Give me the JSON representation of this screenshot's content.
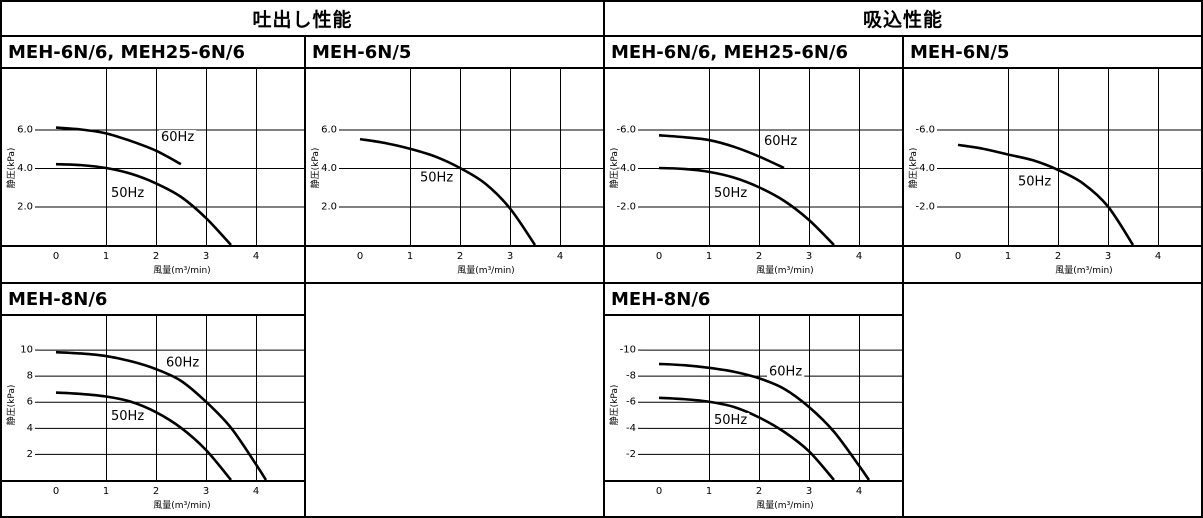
{
  "header": {
    "discharge_label": "吐出し性能",
    "suction_label": "吸込性能"
  },
  "chart_data": [
    {
      "id": "d1",
      "type": "line",
      "title": "MEH-6N/6, MEH25-6N/6",
      "xlabel": "風量(m³/min)",
      "ylabel": "静圧(kPa)",
      "xlim": [
        0,
        5
      ],
      "ylim": [
        0,
        8
      ],
      "xticks": [
        {
          "v": 0,
          "t": "0"
        },
        {
          "v": 1,
          "t": "1"
        },
        {
          "v": 2,
          "t": "2"
        },
        {
          "v": 3,
          "t": "3"
        },
        {
          "v": 4,
          "t": "4"
        }
      ],
      "yticks": [
        {
          "v": 2,
          "t": "2.0"
        },
        {
          "v": 4,
          "t": "4.0"
        },
        {
          "v": 6,
          "t": "6.0"
        }
      ],
      "grid": true,
      "series": [
        {
          "name": "60Hz",
          "x": [
            0,
            0.5,
            1.0,
            1.5,
            2.0,
            2.5
          ],
          "y": [
            6.1,
            6.0,
            5.8,
            5.4,
            4.9,
            4.2
          ],
          "label_at": [
            2.1,
            5.4
          ]
        },
        {
          "name": "50Hz",
          "x": [
            0,
            0.5,
            1.0,
            1.5,
            2.0,
            2.5,
            3.0,
            3.5
          ],
          "y": [
            4.2,
            4.15,
            4.0,
            3.7,
            3.2,
            2.5,
            1.4,
            0
          ],
          "label_at": [
            1.1,
            2.5
          ]
        }
      ]
    },
    {
      "id": "d2",
      "type": "line",
      "title": "MEH-6N/5",
      "xlabel": "風量(m³/min)",
      "ylabel": "静圧(kPa)",
      "xlim": [
        0,
        5
      ],
      "ylim": [
        0,
        8
      ],
      "xticks": [
        {
          "v": 0,
          "t": "0"
        },
        {
          "v": 1,
          "t": "1"
        },
        {
          "v": 2,
          "t": "2"
        },
        {
          "v": 3,
          "t": "3"
        },
        {
          "v": 4,
          "t": "4"
        }
      ],
      "yticks": [
        {
          "v": 2,
          "t": "2.0"
        },
        {
          "v": 4,
          "t": "4.0"
        },
        {
          "v": 6,
          "t": "6.0"
        }
      ],
      "grid": true,
      "series": [
        {
          "name": "50Hz",
          "x": [
            0,
            0.5,
            1.0,
            1.5,
            2.0,
            2.5,
            3.0,
            3.5
          ],
          "y": [
            5.5,
            5.3,
            5.0,
            4.6,
            4.0,
            3.2,
            1.9,
            0
          ],
          "label_at": [
            1.2,
            3.3
          ]
        }
      ]
    },
    {
      "id": "s1",
      "type": "line",
      "title": "MEH-6N/6, MEH25-6N/6",
      "xlabel": "風量(m³/min)",
      "ylabel": "静圧(kPa)",
      "xlim": [
        0,
        5
      ],
      "ylim": [
        0,
        -8
      ],
      "xticks": [
        {
          "v": 0,
          "t": "0"
        },
        {
          "v": 1,
          "t": "1"
        },
        {
          "v": 2,
          "t": "2"
        },
        {
          "v": 3,
          "t": "3"
        },
        {
          "v": 4,
          "t": "4"
        }
      ],
      "yticks": [
        {
          "v": -2,
          "t": "-2.0"
        },
        {
          "v": -4,
          "t": "-4.0"
        },
        {
          "v": -6,
          "t": "-6.0"
        }
      ],
      "grid": true,
      "series": [
        {
          "name": "60Hz",
          "x": [
            0,
            0.5,
            1.0,
            1.5,
            2.0,
            2.5
          ],
          "y": [
            -5.7,
            -5.6,
            -5.45,
            -5.1,
            -4.6,
            -4.0
          ],
          "label_at": [
            2.1,
            -5.2
          ]
        },
        {
          "name": "50Hz",
          "x": [
            0,
            0.5,
            1.0,
            1.5,
            2.0,
            2.5,
            3.0,
            3.5
          ],
          "y": [
            -4.0,
            -3.95,
            -3.8,
            -3.5,
            -3.0,
            -2.3,
            -1.3,
            0
          ],
          "label_at": [
            1.1,
            -2.5
          ]
        }
      ]
    },
    {
      "id": "s2",
      "type": "line",
      "title": "MEH-6N/5",
      "xlabel": "風量(m³/min)",
      "ylabel": "静圧(kPa)",
      "xlim": [
        0,
        5
      ],
      "ylim": [
        0,
        -8
      ],
      "xticks": [
        {
          "v": 0,
          "t": "0"
        },
        {
          "v": 1,
          "t": "1"
        },
        {
          "v": 2,
          "t": "2"
        },
        {
          "v": 3,
          "t": "3"
        },
        {
          "v": 4,
          "t": "4"
        }
      ],
      "yticks": [
        {
          "v": -2,
          "t": "-2.0"
        },
        {
          "v": -4,
          "t": "-4.0"
        },
        {
          "v": -6,
          "t": "-6.0"
        }
      ],
      "grid": true,
      "series": [
        {
          "name": "50Hz",
          "x": [
            0,
            0.5,
            1.0,
            1.5,
            2.0,
            2.5,
            3.0,
            3.5
          ],
          "y": [
            -5.2,
            -5.0,
            -4.7,
            -4.4,
            -3.9,
            -3.2,
            -2.0,
            0
          ],
          "label_at": [
            1.2,
            -3.1
          ]
        }
      ]
    },
    {
      "id": "d3",
      "type": "line",
      "title": "MEH-8N/6",
      "xlabel": "風量(m³/min)",
      "ylabel": "静圧(kPa)",
      "xlim": [
        0,
        5
      ],
      "ylim": [
        0,
        11.5
      ],
      "xticks": [
        {
          "v": 0,
          "t": "0"
        },
        {
          "v": 1,
          "t": "1"
        },
        {
          "v": 2,
          "t": "2"
        },
        {
          "v": 3,
          "t": "3"
        },
        {
          "v": 4,
          "t": "4"
        }
      ],
      "yticks": [
        {
          "v": 2,
          "t": "2"
        },
        {
          "v": 4,
          "t": "4"
        },
        {
          "v": 6,
          "t": "6"
        },
        {
          "v": 8,
          "t": "8"
        },
        {
          "v": 10,
          "t": "10"
        }
      ],
      "grid": true,
      "series": [
        {
          "name": "60Hz",
          "x": [
            0,
            0.5,
            1.0,
            1.5,
            2.0,
            2.5,
            3.0,
            3.5,
            4.0,
            4.2
          ],
          "y": [
            9.8,
            9.7,
            9.5,
            9.1,
            8.5,
            7.6,
            6.0,
            4.0,
            1.2,
            0
          ],
          "label_at": [
            2.2,
            8.7
          ]
        },
        {
          "name": "50Hz",
          "x": [
            0,
            0.5,
            1.0,
            1.5,
            2.0,
            2.5,
            3.0,
            3.5
          ],
          "y": [
            6.7,
            6.6,
            6.4,
            6.0,
            5.2,
            4.0,
            2.3,
            0
          ],
          "label_at": [
            1.1,
            4.6
          ]
        }
      ]
    },
    {
      "id": "s3",
      "type": "line",
      "title": "MEH-8N/6",
      "xlabel": "風量(m³/min)",
      "ylabel": "静圧(kPa)",
      "xlim": [
        0,
        5
      ],
      "ylim": [
        0,
        -11.5
      ],
      "xticks": [
        {
          "v": 0,
          "t": "0"
        },
        {
          "v": 1,
          "t": "1"
        },
        {
          "v": 2,
          "t": "2"
        },
        {
          "v": 3,
          "t": "3"
        },
        {
          "v": 4,
          "t": "4"
        }
      ],
      "yticks": [
        {
          "v": -2,
          "t": "-2"
        },
        {
          "v": -4,
          "t": "-4"
        },
        {
          "v": -6,
          "t": "-6"
        },
        {
          "v": -8,
          "t": "-8"
        },
        {
          "v": -10,
          "t": "-10"
        }
      ],
      "grid": true,
      "series": [
        {
          "name": "60Hz",
          "x": [
            0,
            0.5,
            1.0,
            1.5,
            2.0,
            2.5,
            3.0,
            3.5,
            4.0,
            4.2
          ],
          "y": [
            -8.9,
            -8.8,
            -8.6,
            -8.3,
            -7.8,
            -7.0,
            -5.6,
            -3.7,
            -1.1,
            0
          ],
          "label_at": [
            2.2,
            -8.0
          ]
        },
        {
          "name": "50Hz",
          "x": [
            0,
            0.5,
            1.0,
            1.5,
            2.0,
            2.5,
            3.0,
            3.5
          ],
          "y": [
            -6.3,
            -6.2,
            -6.0,
            -5.6,
            -4.8,
            -3.7,
            -2.2,
            0
          ],
          "label_at": [
            1.1,
            -4.3
          ]
        }
      ]
    }
  ]
}
